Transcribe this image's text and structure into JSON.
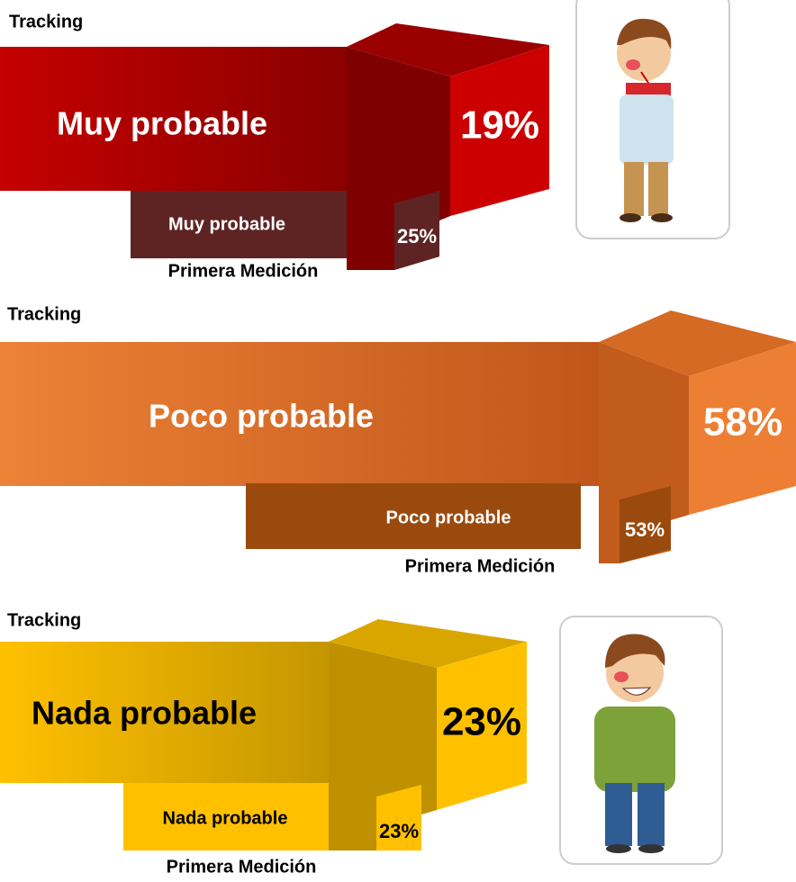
{
  "panels": [
    {
      "heading": "Tracking",
      "label": "Muy probable",
      "value": "19%",
      "previous_label": "Muy probable",
      "previous_value": "25%",
      "previous_heading": "Primera Medición"
    },
    {
      "heading": "Tracking",
      "label": "Poco probable",
      "value": "58%",
      "previous_label": "Poco probable",
      "previous_value": "53%",
      "previous_heading": "Primera Medición"
    },
    {
      "heading": "Tracking",
      "label": "Nada probable",
      "value": "23%",
      "previous_label": "Nada probable",
      "previous_value": "23%",
      "previous_heading": "Primera Medición"
    }
  ]
}
